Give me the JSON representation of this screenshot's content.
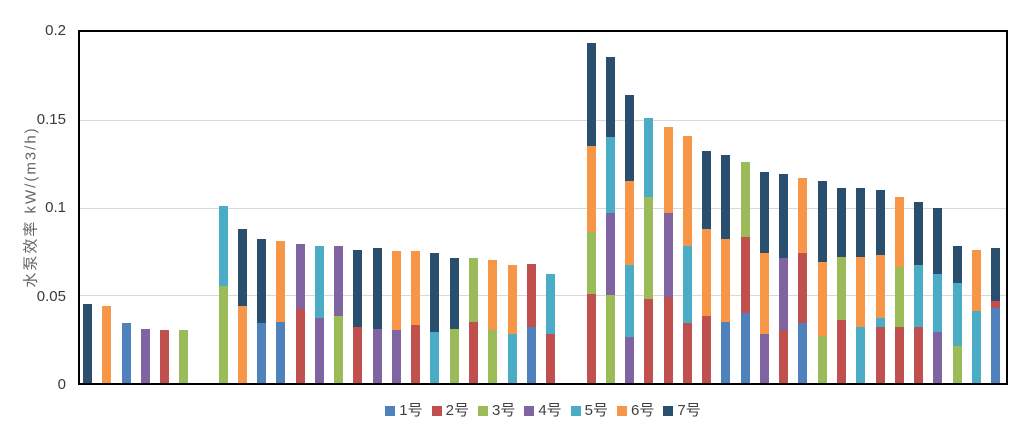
{
  "chart_data": {
    "type": "bar",
    "stacked": true,
    "title": "",
    "xlabel": "",
    "ylabel": "水泵效率 kW/(m3/h)",
    "ylim": [
      0,
      0.2
    ],
    "ytick_labels": [
      "0.2",
      "0.15",
      "0.1",
      "0.05",
      "0"
    ],
    "grid": true,
    "legend_position": "bottom",
    "legend": [
      "1号",
      "2号",
      "3号",
      "4号",
      "5号",
      "6号",
      "7号"
    ],
    "series_colors": {
      "1号": "#4F81BD",
      "2号": "#C0504D",
      "3号": "#9BBB59",
      "4号": "#8064A2",
      "5号": "#4BACC6",
      "6号": "#F79646",
      "7号": "#2A4E6E"
    },
    "groups": [
      {
        "bars": [
          [
            [
              "7号",
              0.045
            ]
          ],
          [
            [
              "6号",
              0.044
            ]
          ],
          [
            [
              "1号",
              0.034
            ]
          ],
          [
            [
              "4号",
              0.031
            ]
          ],
          [
            [
              "2号",
              0.03
            ]
          ],
          [
            [
              "3号",
              0.03
            ]
          ]
        ]
      },
      {
        "bars": [
          [
            [
              "3号",
              0.055
            ],
            [
              "5号",
              0.046
            ]
          ],
          [
            [
              "6号",
              0.044
            ],
            [
              "7号",
              0.044
            ]
          ],
          [
            [
              "1号",
              0.034
            ],
            [
              "7号",
              0.048
            ]
          ],
          [
            [
              "1号",
              0.035
            ],
            [
              "6号",
              0.046
            ]
          ],
          [
            [
              "2号",
              0.042
            ],
            [
              "4号",
              0.037
            ]
          ],
          [
            [
              "4号",
              0.037
            ],
            [
              "5号",
              0.041
            ]
          ],
          [
            [
              "3号",
              0.038
            ],
            [
              "4号",
              0.04
            ]
          ],
          [
            [
              "2号",
              0.032
            ],
            [
              "7号",
              0.044
            ]
          ],
          [
            [
              "4号",
              0.031
            ],
            [
              "7号",
              0.046
            ]
          ],
          [
            [
              "4号",
              0.03
            ],
            [
              "6号",
              0.045
            ]
          ],
          [
            [
              "2号",
              0.033
            ],
            [
              "6号",
              0.042
            ]
          ],
          [
            [
              "5号",
              0.029
            ],
            [
              "7号",
              0.045
            ]
          ],
          [
            [
              "3号",
              0.031
            ],
            [
              "7号",
              0.04
            ]
          ],
          [
            [
              "2号",
              0.035
            ],
            [
              "3号",
              0.036
            ]
          ],
          [
            [
              "3号",
              0.03
            ],
            [
              "6号",
              0.04
            ]
          ],
          [
            [
              "5号",
              0.028
            ],
            [
              "6号",
              0.039
            ]
          ],
          [
            [
              "1号",
              0.032
            ],
            [
              "2号",
              0.036
            ]
          ],
          [
            [
              "2号",
              0.028
            ],
            [
              "5号",
              0.034
            ]
          ]
        ]
      },
      {
        "bars": [
          [
            [
              "2号",
              0.051
            ],
            [
              "3号",
              0.035
            ],
            [
              "6号",
              0.049
            ],
            [
              "7号",
              0.059
            ]
          ],
          [
            [
              "3号",
              0.05
            ],
            [
              "4号",
              0.047
            ],
            [
              "5号",
              0.043
            ],
            [
              "7号",
              0.046
            ]
          ],
          [
            [
              "4号",
              0.026
            ],
            [
              "5号",
              0.041
            ],
            [
              "6号",
              0.048
            ],
            [
              "7号",
              0.049
            ]
          ],
          [
            [
              "2号",
              0.048
            ],
            [
              "3号",
              0.058
            ],
            [
              "5号",
              0.045
            ]
          ],
          [
            [
              "2号",
              0.049
            ],
            [
              "4号",
              0.048
            ],
            [
              "6号",
              0.049
            ]
          ],
          [
            [
              "2号",
              0.034
            ],
            [
              "5号",
              0.044
            ],
            [
              "6号",
              0.063
            ]
          ],
          [
            [
              "2号",
              0.038
            ],
            [
              "6号",
              0.05
            ],
            [
              "7号",
              0.044
            ]
          ],
          [
            [
              "1号",
              0.035
            ],
            [
              "6号",
              0.047
            ],
            [
              "7号",
              0.048
            ]
          ],
          [
            [
              "1号",
              0.04
            ],
            [
              "2号",
              0.043
            ],
            [
              "3号",
              0.043
            ]
          ],
          [
            [
              "4号",
              0.028
            ],
            [
              "6号",
              0.046
            ],
            [
              "7号",
              0.046
            ]
          ],
          [
            [
              "2号",
              0.03
            ],
            [
              "4号",
              0.041
            ],
            [
              "7号",
              0.048
            ]
          ],
          [
            [
              "1号",
              0.034
            ],
            [
              "2号",
              0.04
            ],
            [
              "6号",
              0.043
            ]
          ],
          [
            [
              "3号",
              0.027
            ],
            [
              "6号",
              0.042
            ],
            [
              "7号",
              0.046
            ]
          ],
          [
            [
              "2号",
              0.036
            ],
            [
              "3号",
              0.036
            ],
            [
              "7号",
              0.039
            ]
          ],
          [
            [
              "5号",
              0.032
            ],
            [
              "6号",
              0.04
            ],
            [
              "7号",
              0.039
            ]
          ],
          [
            [
              "2号",
              0.032
            ],
            [
              "5号",
              0.005
            ],
            [
              "6号",
              0.036
            ],
            [
              "7号",
              0.037
            ]
          ],
          [
            [
              "2号",
              0.032
            ],
            [
              "3号",
              0.034
            ],
            [
              "6号",
              0.04
            ]
          ],
          [
            [
              "2号",
              0.032
            ],
            [
              "5号",
              0.035
            ],
            [
              "7号",
              0.036
            ]
          ],
          [
            [
              "4号",
              0.029
            ],
            [
              "5号",
              0.033
            ],
            [
              "7号",
              0.038
            ]
          ],
          [
            [
              "3号",
              0.021
            ],
            [
              "5号",
              0.036
            ],
            [
              "7号",
              0.021
            ]
          ],
          [
            [
              "5号",
              0.041
            ],
            [
              "6号",
              0.035
            ]
          ],
          [
            [
              "1号",
              0.043
            ],
            [
              "2号",
              0.004
            ],
            [
              "7号",
              0.03
            ]
          ]
        ]
      }
    ]
  }
}
